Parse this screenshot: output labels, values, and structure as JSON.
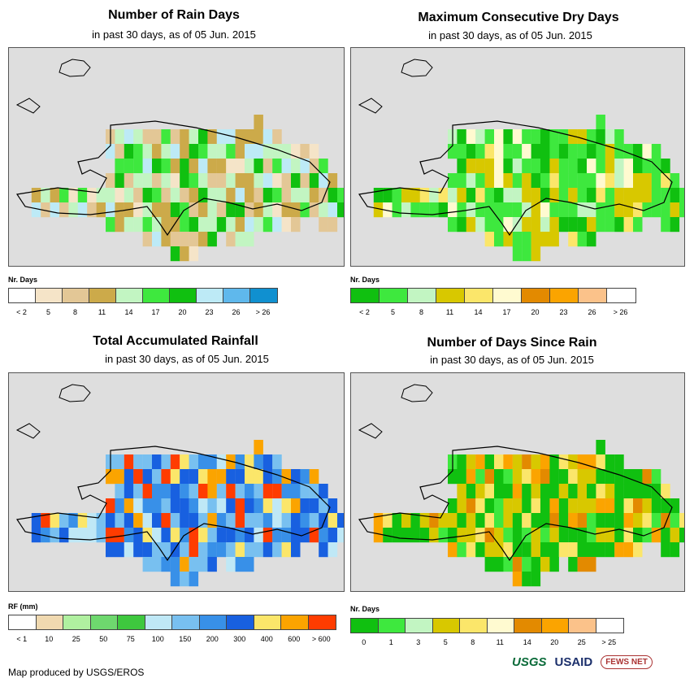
{
  "panels": [
    {
      "title": "Number of Rain Days",
      "subtitle": "in past 30 days, as of 05 Jun. 2015",
      "legend_title": "Nr. Days",
      "legend_colors": [
        "#ffffff",
        "#f5e4c8",
        "#e3c796",
        "#ccaa4a",
        "#c2f5c2",
        "#3ee83e",
        "#10c010",
        "#bdeaf6",
        "#5fb8ec",
        "#1090d0"
      ],
      "legend_labels": [
        "< 2",
        "5",
        "8",
        "11",
        "14",
        "17",
        "20",
        "23",
        "26",
        "> 26"
      ]
    },
    {
      "title": "Maximum Consecutive Dry Days",
      "subtitle": "in past 30 days, as of 05 Jun. 2015",
      "legend_title": "Nr. Days",
      "legend_colors": [
        "#10c010",
        "#3ee83e",
        "#c2f5c2",
        "#d8c800",
        "#fbe66a",
        "#fffad0",
        "#e38a00",
        "#fba400",
        "#fbc28a",
        "#ffffff"
      ],
      "legend_labels": [
        "< 2",
        "5",
        "8",
        "11",
        "14",
        "17",
        "20",
        "23",
        "26",
        "> 26"
      ]
    },
    {
      "title": "Total Accumulated Rainfall",
      "subtitle": "in past 30 days, as of 05 Jun. 2015",
      "legend_title": "RF (mm)",
      "legend_colors": [
        "#ffffff",
        "#f0d9b0",
        "#b0f0a0",
        "#6ed86e",
        "#3ec83e",
        "#bfe8f6",
        "#78c0f0",
        "#3890e8",
        "#1860e0",
        "#fbe66a",
        "#fba400",
        "#ff3c00"
      ],
      "legend_labels": [
        "< 1",
        "10",
        "25",
        "50",
        "75",
        "100",
        "150",
        "200",
        "300",
        "400",
        "600",
        "> 600"
      ]
    },
    {
      "title": "Number of Days Since Rain",
      "subtitle": "in past 30 days, as of 05 Jun. 2015",
      "legend_title": "Nr. Days",
      "legend_colors": [
        "#10c010",
        "#3ee83e",
        "#c2f5c2",
        "#d8c800",
        "#fbe66a",
        "#fffad0",
        "#e38a00",
        "#fba400",
        "#fbc28a",
        "#ffffff"
      ],
      "legend_labels": [
        "0",
        "1",
        "3",
        "5",
        "8",
        "11",
        "14",
        "20",
        "25",
        "> 25"
      ]
    }
  ],
  "footer": "Map produced by USGS/EROS",
  "logos": {
    "usgs": "USGS",
    "usaid": "USAID",
    "fews": "FEWS NET"
  },
  "colors": {
    "map_background": "#dedede",
    "outline": "#000000"
  }
}
